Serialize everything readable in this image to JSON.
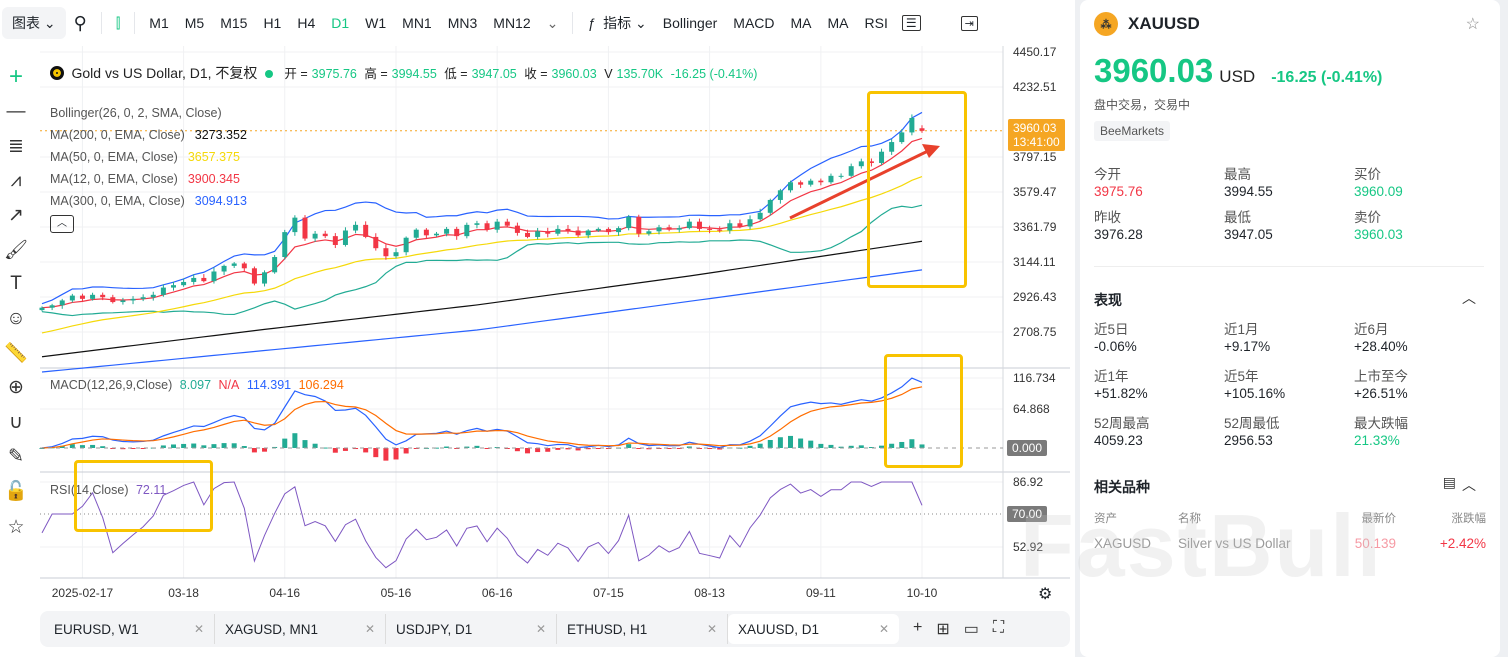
{
  "toolbar": {
    "chart_menu": "图表 ⌄",
    "timeframes": [
      "M1",
      "M5",
      "M15",
      "H1",
      "H4",
      "D1",
      "W1",
      "MN1",
      "MN3",
      "MN12"
    ],
    "active_timeframe": "D1",
    "indicators_label": "指标 ⌄",
    "indicator_shortcuts": [
      "Bollinger",
      "MACD",
      "MA",
      "MA",
      "RSI"
    ]
  },
  "legend": {
    "title": "Gold vs US Dollar, D1, 不复权",
    "open_label": "开 =",
    "open": "3975.76",
    "high_label": "高 =",
    "high": "3994.55",
    "low_label": "低 =",
    "low": "3947.05",
    "close_label": "收 =",
    "close": "3960.03",
    "volume_label": "V",
    "volume": "135.70K",
    "change": "-16.25 (-0.41%)",
    "indicators": [
      {
        "name": "Bollinger(26, 0, 2, SMA, Close)",
        "value": ""
      },
      {
        "name": "MA(200, 0, EMA, Close)",
        "value": "3273.352",
        "color": "#111111"
      },
      {
        "name": "MA(50, 0, EMA, Close)",
        "value": "3657.375",
        "color": "#f5d90a"
      },
      {
        "name": "MA(12, 0, EMA, Close)",
        "value": "3900.345",
        "color": "#f23645"
      },
      {
        "name": "MA(300, 0, EMA, Close)",
        "value": "3094.913",
        "color": "#2962ff"
      }
    ],
    "macd": {
      "name": "MACD(12,26,9,Close)",
      "hist": "8.097",
      "na": "N/A",
      "macd": "114.391",
      "signal": "106.294"
    },
    "rsi": {
      "name": "RSI(14,Close)",
      "value": "72.11"
    }
  },
  "price_axis": {
    "labels": [
      "4450.17",
      "4232.51",
      "3797.15",
      "3579.47",
      "3361.79",
      "3144.11",
      "2926.43",
      "2708.75"
    ],
    "current_price": "3960.03",
    "countdown": "13:41:00",
    "macd_labels": [
      "116.734",
      "64.868"
    ],
    "macd_zero": "0.000",
    "rsi_labels": [
      "86.92",
      "52.92"
    ],
    "rsi_level": "70.00"
  },
  "chart_data": {
    "type": "candlestick",
    "x_labels": [
      {
        "index": 4,
        "label": "2025-02-17"
      },
      {
        "index": 14,
        "label": "03-18"
      },
      {
        "index": 24,
        "label": "04-16"
      },
      {
        "index": 35,
        "label": "05-16"
      },
      {
        "index": 45,
        "label": "06-16"
      },
      {
        "index": 56,
        "label": "07-15"
      },
      {
        "index": 66,
        "label": "08-13"
      },
      {
        "index": 77,
        "label": "09-11"
      },
      {
        "index": 87,
        "label": "10-10"
      }
    ],
    "ylim": [
      2708.75,
      4450.17
    ],
    "closes": [
      2860,
      2875,
      2905,
      2935,
      2915,
      2940,
      2925,
      2895,
      2905,
      2915,
      2925,
      2940,
      2985,
      3000,
      3020,
      3045,
      3025,
      3085,
      3120,
      3135,
      3105,
      3010,
      3080,
      3175,
      3330,
      3420,
      3290,
      3320,
      3305,
      3250,
      3340,
      3375,
      3300,
      3230,
      3180,
      3205,
      3295,
      3345,
      3310,
      3320,
      3350,
      3305,
      3375,
      3385,
      3345,
      3395,
      3370,
      3325,
      3300,
      3335,
      3320,
      3350,
      3340,
      3310,
      3340,
      3350,
      3330,
      3355,
      3425,
      3320,
      3335,
      3360,
      3345,
      3355,
      3395,
      3350,
      3345,
      3340,
      3385,
      3365,
      3410,
      3450,
      3530,
      3590,
      3640,
      3625,
      3650,
      3640,
      3680,
      3680,
      3740,
      3770,
      3760,
      3830,
      3890,
      3950,
      4040,
      3960
    ],
    "last_ohlc": {
      "open": 3975.76,
      "high": 3994.55,
      "low": 3947.05,
      "close": 3960.03
    },
    "ma200": [
      [
        0,
        2555
      ],
      [
        22,
        2725
      ],
      [
        43,
        2877
      ],
      [
        64,
        3057
      ],
      [
        87,
        3273
      ]
    ],
    "ma300": [
      [
        0,
        2460
      ],
      [
        43,
        2721
      ],
      [
        87,
        3095
      ]
    ],
    "ma50_seed": 2690,
    "macd_range": [
      -40,
      116.734
    ],
    "rsi_range": [
      35,
      86.92
    ],
    "rsi_level": 70,
    "colors": {
      "up": "#22ab94",
      "down": "#f23645",
      "ma12": "#f23645",
      "ma50": "#f5d90a",
      "ma200": "#111111",
      "ma300": "#2962ff",
      "bollinger": "#2962ff",
      "bollinger_mid": "#22ab94",
      "macd": "#2962ff",
      "signal": "#ff6d00",
      "rsi": "#7e57c2"
    }
  },
  "tabs": [
    {
      "label": "EURUSD, W1"
    },
    {
      "label": "XAGUSD, MN1"
    },
    {
      "label": "USDJPY, D1"
    },
    {
      "label": "ETHUSD, H1"
    },
    {
      "label": "XAUUSD, D1",
      "active": true
    }
  ],
  "quote": {
    "symbol": "XAUUSD",
    "price": "3960.03",
    "currency": "USD",
    "change": "-16.25  (-0.41%)",
    "status": "盘中交易，交易中",
    "broker": "BeeMarkets",
    "stats": [
      {
        "label": "今开",
        "value": "3975.76",
        "color": "#f23645"
      },
      {
        "label": "最高",
        "value": "3994.55"
      },
      {
        "label": "买价",
        "value": "3960.09",
        "color": "#16c784"
      },
      {
        "label": "昨收",
        "value": "3976.28"
      },
      {
        "label": "最低",
        "value": "3947.05"
      },
      {
        "label": "卖价",
        "value": "3960.03",
        "color": "#16c784"
      }
    ]
  },
  "performance": {
    "title": "表现",
    "items": [
      {
        "label": "近5日",
        "value": "-0.06%"
      },
      {
        "label": "近1月",
        "value": "+9.17%"
      },
      {
        "label": "近6月",
        "value": "+28.40%"
      },
      {
        "label": "近1年",
        "value": "+51.82%"
      },
      {
        "label": "近5年",
        "value": "+105.16%"
      },
      {
        "label": "上市至今",
        "value": "+26.51%"
      },
      {
        "label": "52周最高",
        "value": "4059.23"
      },
      {
        "label": "52周最低",
        "value": "2956.53"
      },
      {
        "label": "最大跌幅",
        "value": "21.33%",
        "color": "#16c784"
      }
    ]
  },
  "related": {
    "title": "相关品种",
    "headers": [
      "资产",
      "名称",
      "最新价",
      "涨跌幅"
    ],
    "rows": [
      {
        "asset": "XAGUSD",
        "name": "Silver vs US Dollar",
        "price": "50.139",
        "change": "+2.42%"
      }
    ]
  },
  "watermark": "FastBull"
}
